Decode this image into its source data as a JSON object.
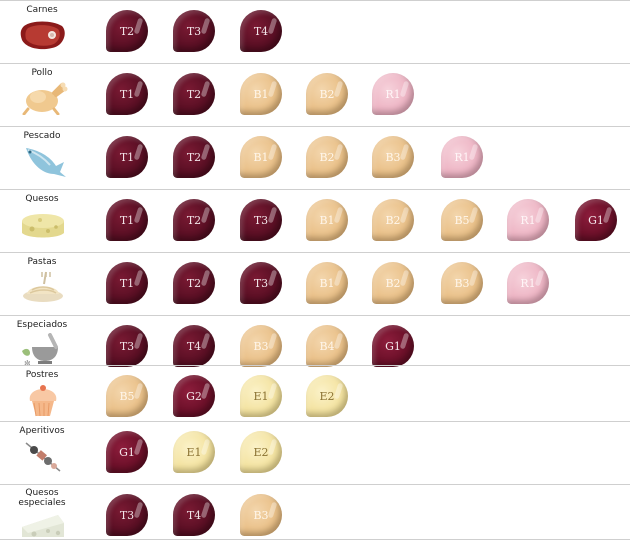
{
  "colors": {
    "tinto": "#5a0f24",
    "blanco": "#e9bf86",
    "rosado": "#edb3c3",
    "espumoso": "#f3e29e",
    "generoso": "#6c1029",
    "divider": "#cfcfcf"
  },
  "categories": [
    {
      "label": "Carnes",
      "icon": "steak-icon",
      "wines": [
        {
          "code": "T2",
          "kind": "tinto"
        },
        {
          "code": "T3",
          "kind": "tinto"
        },
        {
          "code": "T4",
          "kind": "tinto"
        }
      ]
    },
    {
      "label": "Pollo",
      "icon": "roast-chicken-icon",
      "wines": [
        {
          "code": "T1",
          "kind": "tinto"
        },
        {
          "code": "T2",
          "kind": "tinto"
        },
        {
          "code": "B1",
          "kind": "blanco"
        },
        {
          "code": "B2",
          "kind": "blanco"
        },
        {
          "code": "R1",
          "kind": "rosado"
        }
      ]
    },
    {
      "label": "Pescado",
      "icon": "fish-icon",
      "wines": [
        {
          "code": "T1",
          "kind": "tinto"
        },
        {
          "code": "T2",
          "kind": "tinto"
        },
        {
          "code": "B1",
          "kind": "blanco"
        },
        {
          "code": "B2",
          "kind": "blanco"
        },
        {
          "code": "B3",
          "kind": "blanco"
        },
        {
          "code": "R1",
          "kind": "rosado"
        }
      ]
    },
    {
      "label": "Quesos",
      "icon": "cheese-icon",
      "wines": [
        {
          "code": "T1",
          "kind": "tinto"
        },
        {
          "code": "T2",
          "kind": "tinto"
        },
        {
          "code": "T3",
          "kind": "tinto"
        },
        {
          "code": "B1",
          "kind": "blanco"
        },
        {
          "code": "B2",
          "kind": "blanco"
        },
        {
          "code": "B5",
          "kind": "blanco"
        },
        {
          "code": "R1",
          "kind": "rosado"
        },
        {
          "code": "G1",
          "kind": "generoso"
        }
      ]
    },
    {
      "label": "Pastas",
      "icon": "pasta-icon",
      "wines": [
        {
          "code": "T1",
          "kind": "tinto"
        },
        {
          "code": "T2",
          "kind": "tinto"
        },
        {
          "code": "T3",
          "kind": "tinto"
        },
        {
          "code": "B1",
          "kind": "blanco"
        },
        {
          "code": "B2",
          "kind": "blanco"
        },
        {
          "code": "B3",
          "kind": "blanco"
        },
        {
          "code": "R1",
          "kind": "rosado"
        }
      ]
    },
    {
      "label": "Especiados",
      "icon": "mortar-pestle-icon",
      "wines": [
        {
          "code": "T3",
          "kind": "tinto"
        },
        {
          "code": "T4",
          "kind": "tinto"
        },
        {
          "code": "B3",
          "kind": "blanco"
        },
        {
          "code": "B4",
          "kind": "blanco"
        },
        {
          "code": "G1",
          "kind": "generoso"
        }
      ]
    },
    {
      "label": "Postres",
      "icon": "cupcake-icon",
      "wines": [
        {
          "code": "B5",
          "kind": "blanco"
        },
        {
          "code": "G2",
          "kind": "generoso"
        },
        {
          "code": "E1",
          "kind": "espumoso"
        },
        {
          "code": "E2",
          "kind": "espumoso"
        }
      ]
    },
    {
      "label": "Aperitivos",
      "icon": "skewer-icon",
      "wines": [
        {
          "code": "G1",
          "kind": "generoso"
        },
        {
          "code": "E1",
          "kind": "espumoso"
        },
        {
          "code": "E2",
          "kind": "espumoso"
        }
      ]
    },
    {
      "label": "Quesos\nespeciales",
      "icon": "cheese-wedge-icon",
      "wines": [
        {
          "code": "T3",
          "kind": "tinto"
        },
        {
          "code": "T4",
          "kind": "tinto"
        },
        {
          "code": "B3",
          "kind": "blanco"
        }
      ]
    }
  ]
}
